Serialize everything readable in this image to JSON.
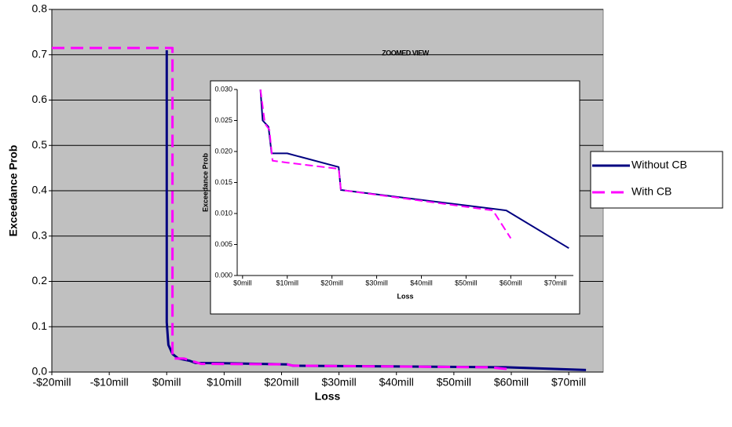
{
  "chart_data": [
    {
      "type": "line",
      "x_label": "Loss",
      "y_label": "Exceedance Prob",
      "xlim": [
        -20,
        76
      ],
      "ylim": [
        0,
        0.8
      ],
      "xticks": [
        {
          "value": -20,
          "label": "-$20mill"
        },
        {
          "value": -10,
          "label": "-$10mill"
        },
        {
          "value": 0,
          "label": "$0mill"
        },
        {
          "value": 10,
          "label": "$10mill"
        },
        {
          "value": 20,
          "label": "$20mill"
        },
        {
          "value": 30,
          "label": "$30mill"
        },
        {
          "value": 40,
          "label": "$40mill"
        },
        {
          "value": 50,
          "label": "$50mill"
        },
        {
          "value": 60,
          "label": "$60mill"
        },
        {
          "value": 70,
          "label": "$70mill"
        }
      ],
      "yticks": [
        {
          "value": 0,
          "label": "0.0"
        },
        0.1,
        0.2,
        0.3,
        0.4,
        0.5,
        0.6,
        0.7,
        0.8
      ],
      "grid": true,
      "background": "#c0c0c0",
      "legend": "right",
      "series": [
        {
          "name": "Without CB",
          "color": "#000080",
          "dashed": false,
          "x": [
            0,
            0,
            0.3,
            1,
            2,
            4,
            5,
            10,
            21,
            22,
            59,
            73
          ],
          "values": [
            0.71,
            0.11,
            0.06,
            0.04,
            0.03,
            0.025,
            0.02,
            0.0195,
            0.017,
            0.014,
            0.0105,
            0.0045
          ]
        },
        {
          "name": "With CB",
          "color": "#ff00ff",
          "dashed": true,
          "x": [
            -20,
            1,
            1,
            3,
            6,
            21,
            22,
            56,
            60
          ],
          "values": [
            0.715,
            0.715,
            0.03,
            0.03,
            0.018,
            0.017,
            0.014,
            0.0105,
            0.006
          ]
        }
      ]
    },
    {
      "type": "line",
      "title": "ZOOMED VIEW",
      "x_label": "Loss",
      "y_label": "Exceedance Prob",
      "xlim": [
        -1.2,
        74
      ],
      "ylim": [
        0,
        0.03
      ],
      "xticks": [
        {
          "value": 0,
          "label": "$0mill"
        },
        {
          "value": 10,
          "label": "$10mill"
        },
        {
          "value": 20,
          "label": "$20mill"
        },
        {
          "value": 30,
          "label": "$30mill"
        },
        {
          "value": 40,
          "label": "$40mill"
        },
        {
          "value": 50,
          "label": "$50mill"
        },
        {
          "value": 60,
          "label": "$60mill"
        },
        {
          "value": 70,
          "label": "$70mill"
        }
      ],
      "yticks": [
        {
          "value": 0,
          "label": "0.000"
        },
        {
          "value": 0.005,
          "label": "0.005"
        },
        {
          "value": 0.01,
          "label": "0.010"
        },
        {
          "value": 0.015,
          "label": "0.015"
        },
        {
          "value": 0.02,
          "label": "0.020"
        },
        {
          "value": 0.025,
          "label": "0.025"
        },
        {
          "value": 0.03,
          "label": "0.030"
        }
      ],
      "grid": false,
      "background": "#ffffff",
      "series": [
        {
          "color": "#000080",
          "dashed": false,
          "x": [
            4,
            4.5,
            5.8,
            6.5,
            10,
            21.5,
            22,
            59,
            73
          ],
          "values": [
            0.03,
            0.025,
            0.024,
            0.0197,
            0.0197,
            0.0175,
            0.0138,
            0.0105,
            0.0044
          ]
        },
        {
          "color": "#ff00ff",
          "dashed": true,
          "x": [
            4,
            5,
            6,
            6.7,
            10,
            21.5,
            22,
            56,
            60
          ],
          "values": [
            0.03,
            0.0245,
            0.0235,
            0.0185,
            0.0182,
            0.0172,
            0.0138,
            0.0105,
            0.006
          ]
        }
      ]
    }
  ]
}
